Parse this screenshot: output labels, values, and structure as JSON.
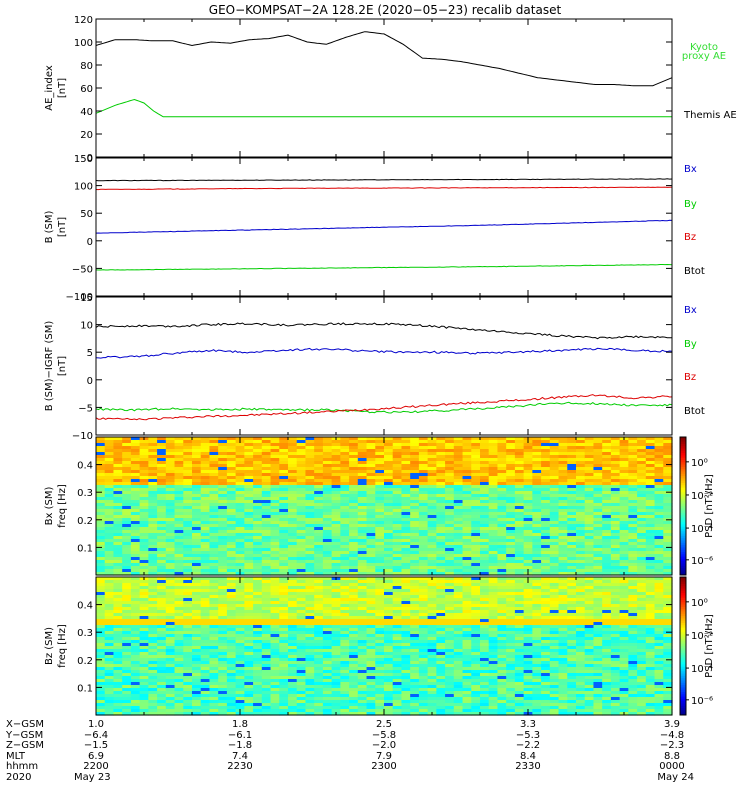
{
  "title": "GEO−KOMPSAT−2A 128.2E (2020−05−23) recalib dataset",
  "colors": {
    "black": "#000000",
    "green": "#00cc00",
    "blue": "#0000cc",
    "red": "#dd0000",
    "kyoto": "#33dd33"
  },
  "chart_data": [
    {
      "type": "line",
      "ylabel": "AE_index",
      "yunit": "[nT]",
      "ylim": [
        0,
        120
      ],
      "yticks": [
        0,
        20,
        40,
        60,
        80,
        100,
        120
      ],
      "x_range_min": [
        0,
        60
      ],
      "legend": [
        "Kyoto",
        "proxy AE",
        "Themis AE"
      ],
      "series": [
        {
          "name": "Themis AE",
          "color": "black",
          "x": [
            0,
            2,
            4,
            6,
            8,
            10,
            12,
            14,
            16,
            18,
            20,
            22,
            24,
            26,
            28,
            30,
            32,
            34,
            36,
            38,
            40,
            42,
            44,
            46,
            48,
            50,
            52,
            54,
            56,
            58,
            60
          ],
          "y": [
            97,
            102,
            102,
            101,
            101,
            97,
            100,
            99,
            102,
            103,
            106,
            100,
            98,
            104,
            109,
            107,
            98,
            86,
            85,
            83,
            80,
            77,
            73,
            69,
            67,
            65,
            63,
            63,
            62,
            62,
            69
          ]
        },
        {
          "name": "Kyoto proxy AE",
          "color": "green",
          "x": [
            0,
            2,
            4,
            5,
            6,
            7,
            60
          ],
          "y": [
            38,
            45,
            50,
            47,
            40,
            35,
            35
          ]
        }
      ]
    },
    {
      "type": "line",
      "ylabel": "B (SM)",
      "yunit": "[nT]",
      "ylim": [
        -100,
        150
      ],
      "yticks": [
        -100,
        -50,
        0,
        50,
        100,
        150
      ],
      "legend": [
        "Bx",
        "By",
        "Bz",
        "Btot"
      ],
      "series": [
        {
          "name": "Btot",
          "color": "black",
          "x": [
            0,
            20,
            40,
            60
          ],
          "y": [
            109,
            110,
            111,
            112
          ]
        },
        {
          "name": "Bz",
          "color": "red",
          "x": [
            0,
            20,
            40,
            60
          ],
          "y": [
            93,
            95,
            96,
            97
          ]
        },
        {
          "name": "Bx",
          "color": "blue",
          "x": [
            0,
            20,
            40,
            60
          ],
          "y": [
            14,
            21,
            28,
            37
          ]
        },
        {
          "name": "By",
          "color": "green",
          "x": [
            0,
            20,
            40,
            60
          ],
          "y": [
            -53,
            -50,
            -47,
            -43
          ]
        }
      ]
    },
    {
      "type": "line",
      "ylabel": "B (SM)−IGRF (SM)",
      "yunit": "[nT]",
      "ylim": [
        -10,
        15
      ],
      "yticks": [
        -10,
        -5,
        0,
        5,
        10,
        15
      ],
      "legend": [
        "Bx",
        "By",
        "Bz",
        "Btot"
      ],
      "series": [
        {
          "name": "Btot",
          "color": "black",
          "x": [
            0,
            4,
            8,
            12,
            16,
            20,
            24,
            28,
            32,
            36,
            40,
            44,
            48,
            52,
            56,
            60
          ],
          "y": [
            9.6,
            9.8,
            9.7,
            10.0,
            10.2,
            9.9,
            10.1,
            10.2,
            10.0,
            9.6,
            9.0,
            8.5,
            8.0,
            7.6,
            7.8,
            7.7
          ]
        },
        {
          "name": "Bx",
          "color": "blue",
          "x": [
            0,
            4,
            8,
            12,
            16,
            20,
            24,
            28,
            32,
            36,
            40,
            44,
            48,
            52,
            56,
            60
          ],
          "y": [
            4.0,
            4.2,
            4.8,
            5.3,
            5.0,
            5.4,
            5.6,
            5.2,
            5.0,
            5.0,
            4.8,
            5.0,
            5.3,
            5.6,
            5.4,
            5.1
          ]
        },
        {
          "name": "By",
          "color": "green",
          "x": [
            0,
            4,
            8,
            12,
            16,
            20,
            24,
            28,
            32,
            36,
            40,
            44,
            48,
            52,
            56,
            60
          ],
          "y": [
            -5.3,
            -5.5,
            -5.2,
            -5.4,
            -5.3,
            -5.5,
            -5.4,
            -5.8,
            -5.9,
            -5.6,
            -5.2,
            -4.8,
            -4.2,
            -4.3,
            -4.6,
            -4.6
          ]
        },
        {
          "name": "Bz",
          "color": "red",
          "x": [
            0,
            4,
            8,
            12,
            16,
            20,
            24,
            28,
            32,
            36,
            40,
            44,
            48,
            52,
            56,
            60
          ],
          "y": [
            -7.0,
            -7.2,
            -6.9,
            -6.6,
            -6.4,
            -6.1,
            -5.8,
            -5.4,
            -5.0,
            -4.5,
            -4.1,
            -3.7,
            -3.2,
            -2.8,
            -3.3,
            -3.0
          ]
        }
      ]
    },
    {
      "type": "heatmap",
      "ylabel": "Bx (SM)",
      "yunit": "freq [Hz]",
      "ylim": [
        0,
        0.5
      ],
      "yticks": [
        0.1,
        0.2,
        0.3,
        0.4
      ],
      "colorbar": {
        "label": "PSD [nT²/Hz]",
        "ticks": [
          "10⁰",
          "10⁻²",
          "10⁻⁴",
          "10⁻⁶"
        ]
      },
      "note": "PSD mostly 10^-4 to 10^-2 nT^2/Hz above 0.17 Hz; higher (~10^-1) below 0.17 Hz"
    },
    {
      "type": "heatmap",
      "ylabel": "Bz (SM)",
      "yunit": "freq [Hz]",
      "ylim": [
        0,
        0.5
      ],
      "yticks": [
        0.1,
        0.2,
        0.3,
        0.4
      ],
      "colorbar": {
        "label": "PSD [nT²/Hz]",
        "ticks": [
          "10⁰",
          "10⁻²",
          "10⁻⁴",
          "10⁻⁶"
        ]
      },
      "note": "PSD mostly 10^-4 to 10^-3 nT^2/Hz; elevated band near 0.16 Hz"
    }
  ],
  "xaxis": {
    "row_labels": [
      "X−GSM",
      "Y−GSM",
      "Z−GSM",
      "MLT",
      "hhmm",
      "2020"
    ],
    "ticks": [
      {
        "t": 0,
        "vals": [
          "1.0",
          "−6.4",
          "−1.5",
          "6.9",
          "2200",
          "May 23"
        ]
      },
      {
        "t": 15,
        "vals": [
          "1.8",
          "−6.1",
          "−1.8",
          "7.4",
          "2230",
          ""
        ]
      },
      {
        "t": 30,
        "vals": [
          "2.5",
          "−5.8",
          "−2.0",
          "7.9",
          "2300",
          ""
        ]
      },
      {
        "t": 45,
        "vals": [
          "3.3",
          "−5.3",
          "−2.2",
          "8.4",
          "2330",
          ""
        ]
      },
      {
        "t": 60,
        "vals": [
          "3.9",
          "−4.8",
          "−2.3",
          "8.8",
          "0000",
          "May 24"
        ]
      }
    ]
  }
}
